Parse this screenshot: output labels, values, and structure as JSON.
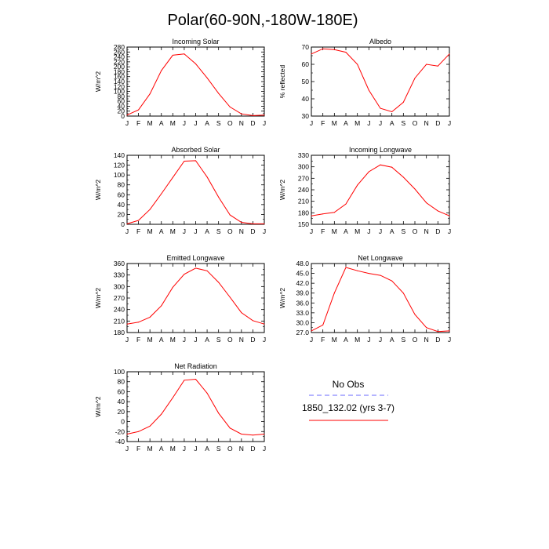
{
  "figure_title": "Polar(60-90N,-180W-180E)",
  "colors": {
    "model_line": "#ff0000",
    "obs_line": "#6a6aff",
    "axis": "#000000"
  },
  "legend": {
    "obs_label": "No Obs",
    "model_label": "1850_132.02 (yrs 3-7)"
  },
  "chart_data": [
    {
      "type": "line",
      "title": "Incoming Solar",
      "ylabel": "W/m^2",
      "ylim": [
        0,
        280
      ],
      "yticks": [
        0,
        20,
        40,
        60,
        80,
        100,
        120,
        140,
        160,
        180,
        200,
        220,
        240,
        260,
        280
      ],
      "categories": [
        "J",
        "F",
        "M",
        "A",
        "M",
        "J",
        "J",
        "A",
        "S",
        "O",
        "N",
        "D",
        "J"
      ],
      "series": [
        {
          "name": "1850_132.02 (yrs 3-7)",
          "values": [
            4,
            25,
            90,
            185,
            247,
            252,
            212,
            155,
            92,
            37,
            9,
            2,
            4
          ]
        }
      ]
    },
    {
      "type": "line",
      "title": "Albedo",
      "ylabel": "% reflected",
      "ylim": [
        30,
        70
      ],
      "yticks": [
        30,
        40,
        50,
        60,
        70
      ],
      "categories": [
        "J",
        "F",
        "M",
        "A",
        "M",
        "J",
        "J",
        "A",
        "S",
        "O",
        "N",
        "D",
        "J"
      ],
      "series": [
        {
          "name": "1850_132.02 (yrs 3-7)",
          "values": [
            66,
            69,
            68.5,
            67,
            60,
            45,
            34.5,
            32.5,
            38,
            52,
            60,
            59,
            66
          ]
        }
      ]
    },
    {
      "type": "line",
      "title": "Absorbed Solar",
      "ylabel": "W/m^2",
      "ylim": [
        0,
        140
      ],
      "yticks": [
        0,
        20,
        40,
        60,
        80,
        100,
        120,
        140
      ],
      "categories": [
        "J",
        "F",
        "M",
        "A",
        "M",
        "J",
        "J",
        "A",
        "S",
        "O",
        "N",
        "D",
        "J"
      ],
      "series": [
        {
          "name": "1850_132.02 (yrs 3-7)",
          "values": [
            1,
            8,
            30,
            62,
            95,
            128,
            129,
            96,
            55,
            19,
            4,
            1,
            1
          ]
        }
      ]
    },
    {
      "type": "line",
      "title": "Incoming Longwave",
      "ylabel": "W/m^2",
      "ylim": [
        150,
        330
      ],
      "yticks": [
        150,
        180,
        210,
        240,
        270,
        300,
        330
      ],
      "categories": [
        "J",
        "F",
        "M",
        "A",
        "M",
        "J",
        "J",
        "A",
        "S",
        "O",
        "N",
        "D",
        "J"
      ],
      "series": [
        {
          "name": "1850_132.02 (yrs 3-7)",
          "values": [
            172,
            177,
            181,
            203,
            252,
            287,
            305,
            299,
            273,
            242,
            206,
            185,
            172
          ]
        }
      ]
    },
    {
      "type": "line",
      "title": "Emitted Longwave",
      "ylabel": "W/m^2",
      "ylim": [
        180,
        360
      ],
      "yticks": [
        180,
        210,
        240,
        270,
        300,
        330,
        360
      ],
      "categories": [
        "J",
        "F",
        "M",
        "A",
        "M",
        "J",
        "J",
        "A",
        "S",
        "O",
        "N",
        "D",
        "J"
      ],
      "series": [
        {
          "name": "1850_132.02 (yrs 3-7)",
          "values": [
            202,
            207,
            220,
            250,
            298,
            332,
            348,
            341,
            311,
            272,
            232,
            211,
            202
          ]
        }
      ]
    },
    {
      "type": "line",
      "title": "Net Longwave",
      "ylabel": "W/m^2",
      "ylim": [
        27.0,
        48.0
      ],
      "yticks": [
        27.0,
        30.0,
        33.0,
        36.0,
        39.0,
        42.0,
        45.0,
        48.0
      ],
      "tick_format": "1dp",
      "categories": [
        "J",
        "F",
        "M",
        "A",
        "M",
        "J",
        "J",
        "A",
        "S",
        "O",
        "N",
        "D",
        "J"
      ],
      "series": [
        {
          "name": "1850_132.02 (yrs 3-7)",
          "values": [
            27.5,
            29.3,
            39.0,
            46.8,
            45.8,
            45.0,
            44.4,
            42.7,
            39.0,
            32.5,
            28.5,
            27.3,
            27.5
          ]
        }
      ]
    },
    {
      "type": "line",
      "title": "Net Radiation",
      "ylabel": "W/m^2",
      "ylim": [
        -40,
        100
      ],
      "yticks": [
        -40,
        -20,
        0,
        20,
        40,
        60,
        80,
        100
      ],
      "categories": [
        "J",
        "F",
        "M",
        "A",
        "M",
        "J",
        "J",
        "A",
        "S",
        "O",
        "N",
        "D",
        "J"
      ],
      "series": [
        {
          "name": "1850_132.02 (yrs 3-7)",
          "values": [
            -25,
            -20,
            -9,
            15,
            48,
            83,
            85,
            57,
            17,
            -13,
            -25,
            -27,
            -25
          ]
        }
      ]
    }
  ]
}
